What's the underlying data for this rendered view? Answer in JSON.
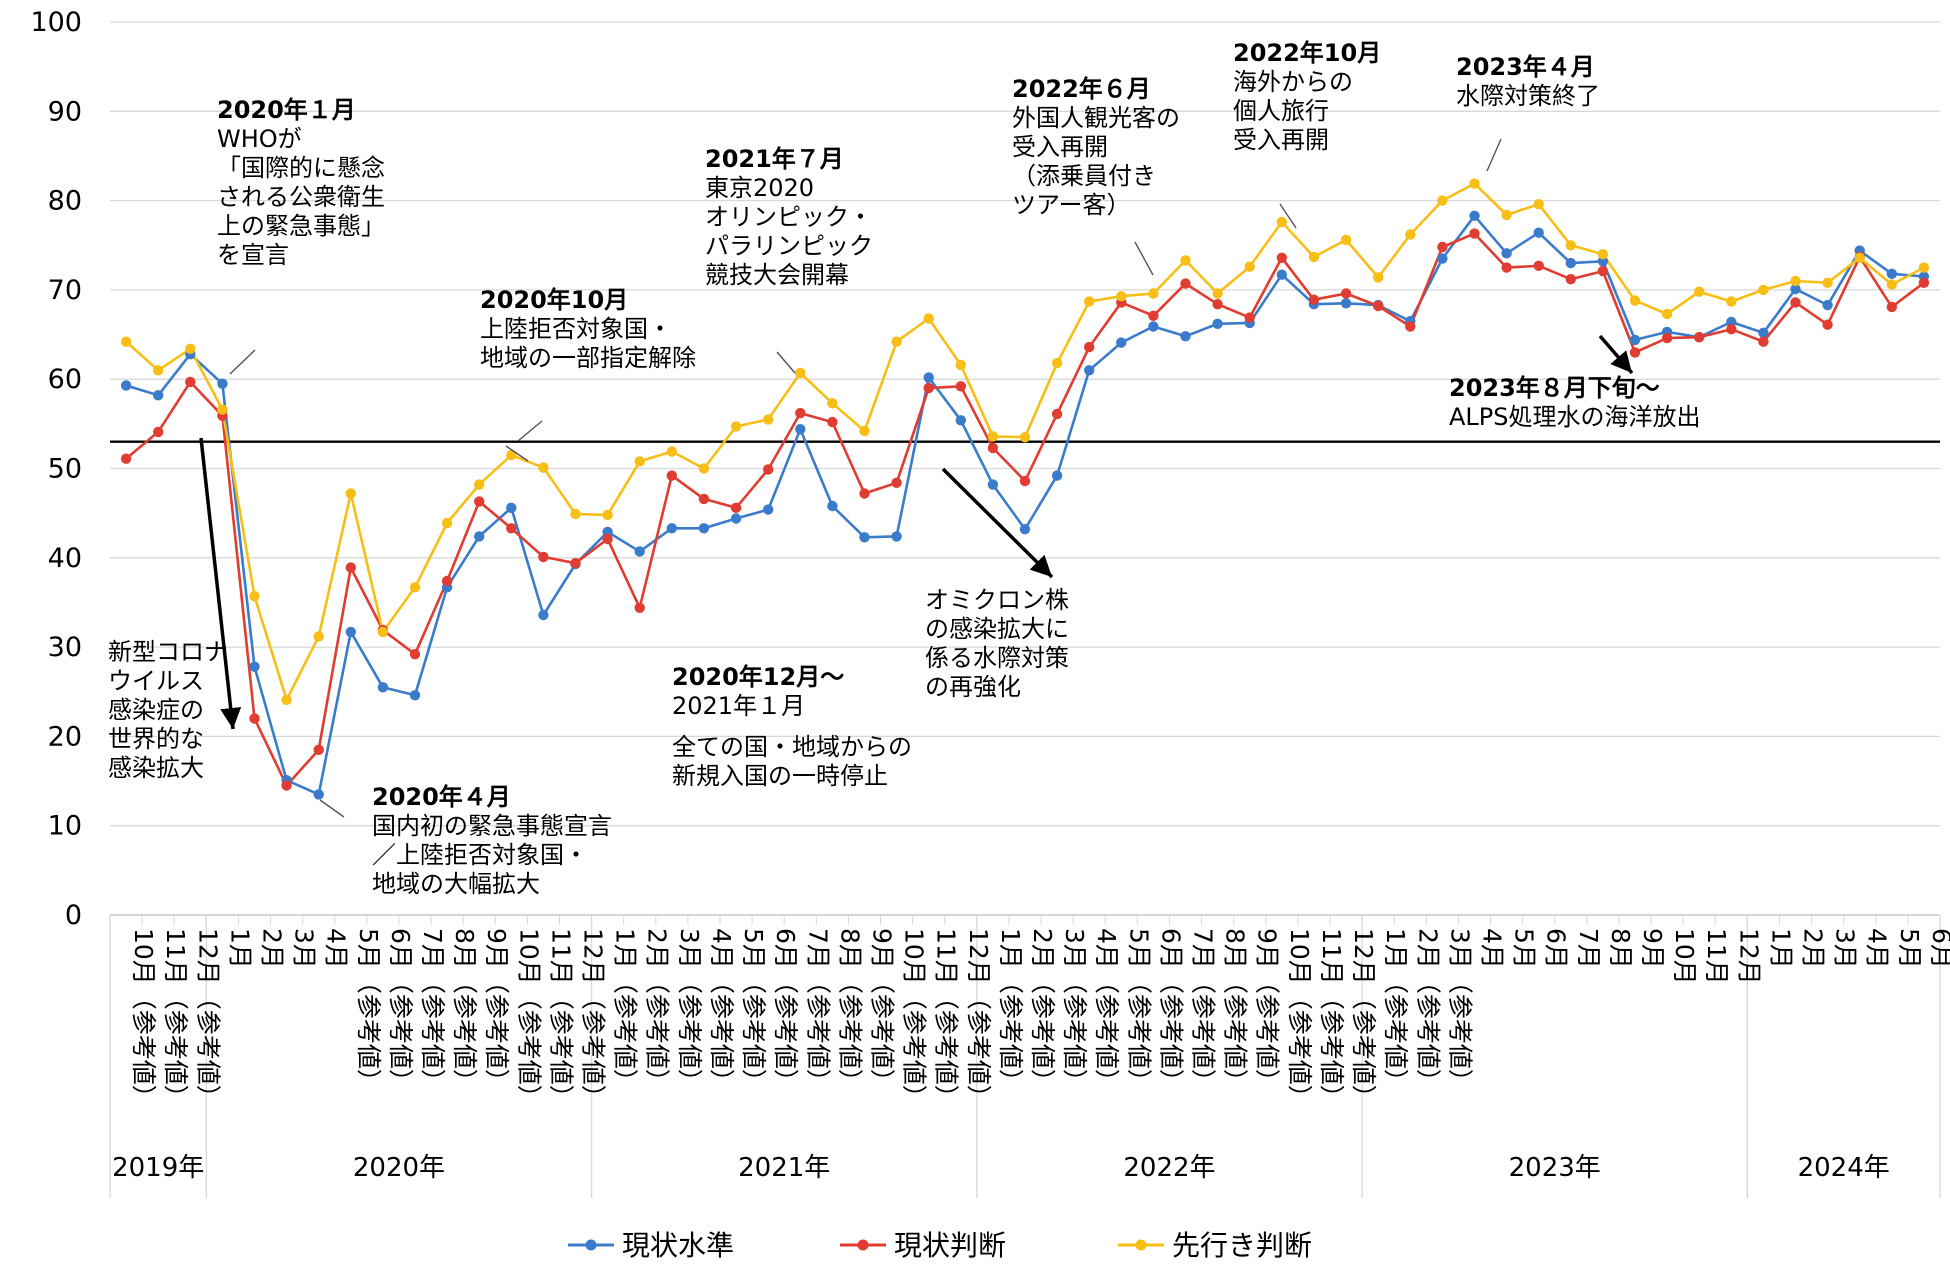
{
  "chart_data": {
    "type": "line",
    "title": "",
    "xlabel": "",
    "ylabel": "",
    "ylim": [
      0,
      100
    ],
    "yticks": [
      0,
      10,
      20,
      30,
      40,
      50,
      60,
      70,
      80,
      90,
      100
    ],
    "grid": true,
    "reference_line": 53,
    "legend_position": "bottom",
    "categories": [
      "10月（参考値）",
      "11月（参考値）",
      "12月（参考値）",
      "1月",
      "2月",
      "3月",
      "4月",
      "5月（参考値）",
      "6月（参考値）",
      "7月（参考値）",
      "8月（参考値）",
      "9月（参考値）",
      "10月（参考値）",
      "11月（参考値）",
      "12月（参考値）",
      "1月（参考値）",
      "2月（参考値）",
      "3月（参考値）",
      "4月（参考値）",
      "5月（参考値）",
      "6月（参考値）",
      "7月（参考値）",
      "8月（参考値）",
      "9月（参考値）",
      "10月（参考値）",
      "11月（参考値）",
      "12月（参考値）",
      "1月（参考値）",
      "2月（参考値）",
      "3月（参考値）",
      "4月（参考値）",
      "5月（参考値）",
      "6月（参考値）",
      "7月（参考値）",
      "8月（参考値）",
      "9月（参考値）",
      "10月（参考値）",
      "11月（参考値）",
      "12月（参考値）",
      "1月（参考値）",
      "2月（参考値）",
      "3月（参考値）",
      "4月",
      "5月",
      "6月",
      "7月",
      "8月",
      "9月",
      "10月",
      "11月",
      "12月",
      "1月",
      "2月",
      "3月",
      "4月",
      "5月",
      "6月"
    ],
    "years": [
      {
        "label": "2019年",
        "start": 0,
        "end": 2
      },
      {
        "label": "2020年",
        "start": 3,
        "end": 14
      },
      {
        "label": "2021年",
        "start": 15,
        "end": 26
      },
      {
        "label": "2022年",
        "start": 27,
        "end": 38
      },
      {
        "label": "2023年",
        "start": 39,
        "end": 50
      },
      {
        "label": "2024年",
        "start": 51,
        "end": 56
      }
    ],
    "series": [
      {
        "name": "現状水準",
        "color": "#3A7CCB",
        "values": [
          59.3,
          58.2,
          62.8,
          59.5,
          27.8,
          15.1,
          13.5,
          31.7,
          25.5,
          24.6,
          36.7,
          42.4,
          45.6,
          33.6,
          39.3,
          42.9,
          40.7,
          43.3,
          43.3,
          44.4,
          45.4,
          54.4,
          45.8,
          42.3,
          42.4,
          60.2,
          55.4,
          48.2,
          43.2,
          49.2,
          61.0,
          64.1,
          65.9,
          64.8,
          66.2,
          66.3,
          71.7,
          68.4,
          68.5,
          68.3,
          66.5,
          73.5,
          78.3,
          74.1,
          76.4,
          73.0,
          73.2,
          64.4,
          65.3,
          64.7,
          66.4,
          65.2,
          70.1,
          68.3,
          74.4,
          71.8,
          71.5
        ]
      },
      {
        "name": "現状判断",
        "color": "#E03C31",
        "values": [
          51.1,
          54.1,
          59.7,
          55.9,
          22.0,
          14.5,
          18.5,
          38.9,
          31.9,
          29.2,
          37.4,
          46.3,
          43.3,
          40.1,
          39.4,
          42.1,
          34.4,
          49.2,
          46.6,
          45.6,
          49.9,
          56.2,
          55.2,
          47.2,
          48.4,
          59.0,
          59.2,
          52.3,
          48.6,
          56.1,
          63.6,
          68.6,
          67.1,
          70.7,
          68.4,
          66.9,
          73.6,
          68.9,
          69.6,
          68.2,
          65.9,
          74.8,
          76.3,
          72.5,
          72.7,
          71.2,
          72.1,
          63.0,
          64.6,
          64.7,
          65.6,
          64.2,
          68.6,
          66.1,
          73.7,
          68.1,
          70.8
        ]
      },
      {
        "name": "先行き判断",
        "color": "#F7BE16",
        "values": [
          64.2,
          61.0,
          63.4,
          56.6,
          35.7,
          24.1,
          31.2,
          47.2,
          31.7,
          36.7,
          43.9,
          48.2,
          51.5,
          50.1,
          44.9,
          44.8,
          50.8,
          51.9,
          50.0,
          54.7,
          55.5,
          60.7,
          57.3,
          54.2,
          64.2,
          66.8,
          61.6,
          53.6,
          53.5,
          61.8,
          68.7,
          69.3,
          69.6,
          73.3,
          69.6,
          72.6,
          77.6,
          73.7,
          75.6,
          71.4,
          76.2,
          80.0,
          81.9,
          78.4,
          79.6,
          75.0,
          74.0,
          68.8,
          67.3,
          69.8,
          68.7,
          70.0,
          71.0,
          70.8,
          73.6,
          70.6,
          72.5
        ]
      }
    ],
    "annotations": [
      {
        "bold": "2020年１月",
        "lines": [
          "WHOが",
          "「国際的に懸念",
          "される公衆衛生",
          "上の緊急事態」",
          "を宣言"
        ]
      },
      {
        "bold": "",
        "lines": [
          "新型コロナ",
          "ウイルス",
          "感染症の",
          "世界的な",
          "感染拡大"
        ]
      },
      {
        "bold": "2020年４月",
        "lines": [
          "国内初の緊急事態宣言",
          "／上陸拒否対象国・",
          "地域の大幅拡大"
        ]
      },
      {
        "bold": "2020年10月",
        "lines": [
          "上陸拒否対象国・",
          "地域の一部指定解除"
        ]
      },
      {
        "bold": "2020年12月～",
        "lines": [
          "2021年１月"
        ]
      },
      {
        "bold": "",
        "lines": [
          "全ての国・地域からの",
          "新規入国の一時停止"
        ]
      },
      {
        "bold": "2021年７月",
        "lines": [
          "東京2020",
          "オリンピック・",
          "パラリンピック",
          "競技大会開幕"
        ]
      },
      {
        "bold": "",
        "lines": [
          "オミクロン株",
          "の感染拡大に",
          "係る水際対策",
          "の再強化"
        ]
      },
      {
        "bold": "2022年６月",
        "lines": [
          "外国人観光客の",
          "受入再開",
          "（添乗員付き",
          "ツアー客）"
        ]
      },
      {
        "bold": "2022年10月",
        "lines": [
          "海外からの",
          "個人旅行",
          "受入再開"
        ]
      },
      {
        "bold": "2023年４月",
        "lines": [
          "水際対策終了"
        ]
      },
      {
        "bold": "2023年８月下旬～",
        "lines": [
          "ALPS処理水の海洋放出"
        ]
      }
    ]
  }
}
